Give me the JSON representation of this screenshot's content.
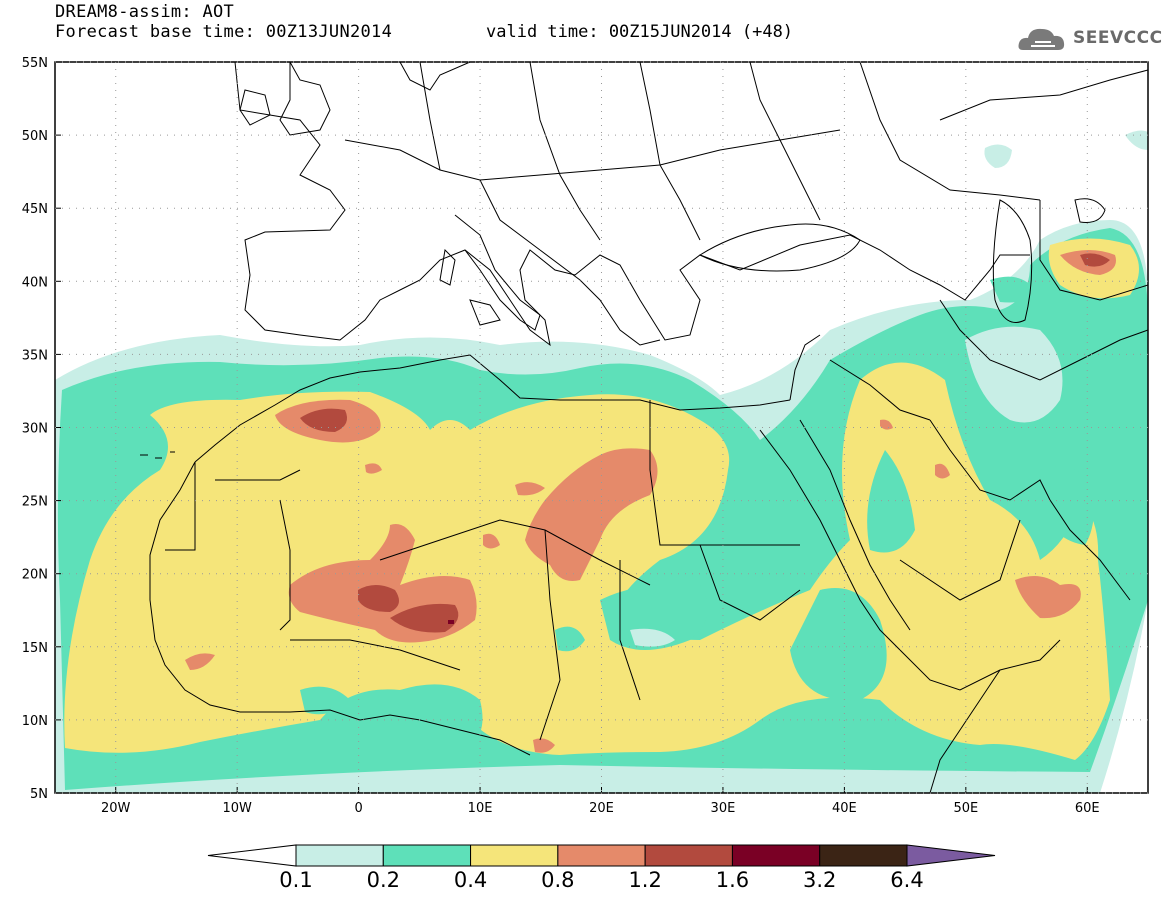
{
  "header": {
    "title": "DREAM8-assim: AOT",
    "base_time": "Forecast base time: 00Z13JUN2014",
    "valid_time": "valid time: 00Z15JUN2014 (+48)",
    "logo_text": "SEEVCCC"
  },
  "map": {
    "lon_range": [
      -25,
      65
    ],
    "lat_range": [
      5,
      55
    ],
    "lon_ticks": [
      "20W",
      "10W",
      "0",
      "10E",
      "20E",
      "30E",
      "40E",
      "50E",
      "60E"
    ],
    "lat_ticks": [
      "55N",
      "50N",
      "45N",
      "40N",
      "35N",
      "30N",
      "25N",
      "20N",
      "15N",
      "10N",
      "5N"
    ]
  },
  "colorbar": {
    "labels": [
      "0.1",
      "0.2",
      "0.4",
      "0.8",
      "1.2",
      "1.6",
      "3.2",
      "6.4"
    ],
    "colors": [
      "#ffffff",
      "#c8eee6",
      "#5ee0b9",
      "#f5e57a",
      "#e58a6a",
      "#b24a3e",
      "#7a0025",
      "#3b2415",
      "#7b5ba0"
    ]
  }
}
